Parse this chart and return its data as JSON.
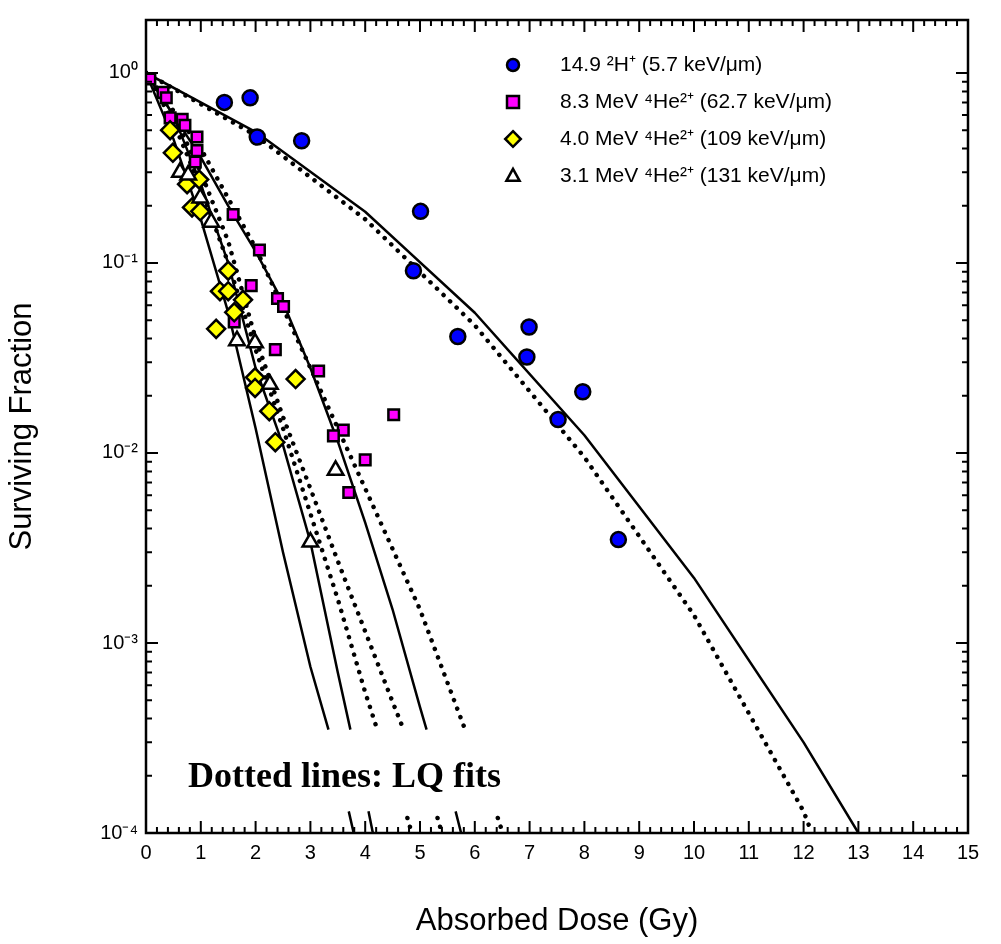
{
  "chart_data": {
    "type": "scatter",
    "xlabel": "Absorbed Dose (Gy)",
    "ylabel": "Surviving Fraction",
    "log": "y",
    "legend": "top right",
    "xlim": [
      0,
      15
    ],
    "ylim": [
      0.0001,
      1.9
    ],
    "xticks": [
      0,
      {
        "value": 0.2,
        "label": null
      },
      {
        "value": 0.4,
        "label": null
      },
      {
        "value": 0.6,
        "label": null
      },
      {
        "value": 0.8,
        "label": null
      },
      1,
      {
        "value": 1.2,
        "label": null
      },
      {
        "value": 1.4,
        "label": null
      },
      {
        "value": 1.6,
        "label": null
      },
      {
        "value": 1.8,
        "label": null
      },
      2,
      {
        "value": 2.2,
        "label": null
      },
      {
        "value": 2.4,
        "label": null
      },
      {
        "value": 2.6,
        "label": null
      },
      {
        "value": 2.8,
        "label": null
      },
      3,
      {
        "value": 3.2,
        "label": null
      },
      {
        "value": 3.4,
        "label": null
      },
      {
        "value": 3.6,
        "label": null
      },
      {
        "value": 3.8,
        "label": null
      },
      4,
      {
        "value": 4.2,
        "label": null
      },
      {
        "value": 4.4,
        "label": null
      },
      {
        "value": 4.6,
        "label": null
      },
      {
        "value": 4.8,
        "label": null
      },
      5,
      {
        "value": 5.2,
        "label": null
      },
      {
        "value": 5.4,
        "label": null
      },
      {
        "value": 5.6,
        "label": null
      },
      {
        "value": 5.8,
        "label": null
      },
      6,
      {
        "value": 6.2,
        "label": null
      },
      {
        "value": 6.4,
        "label": null
      },
      {
        "value": 6.6,
        "label": null
      },
      {
        "value": 6.8,
        "label": null
      },
      7,
      {
        "value": 7.2,
        "label": null
      },
      {
        "value": 7.4,
        "label": null
      },
      {
        "value": 7.6,
        "label": null
      },
      {
        "value": 7.8,
        "label": null
      },
      8,
      {
        "value": 8.2,
        "label": null
      },
      {
        "value": 8.4,
        "label": null
      },
      {
        "value": 8.6,
        "label": null
      },
      {
        "value": 8.8,
        "label": null
      },
      9,
      {
        "value": 9.2,
        "label": null
      },
      {
        "value": 9.4,
        "label": null
      },
      {
        "value": 9.6,
        "label": null
      },
      {
        "value": 9.8,
        "label": null
      },
      10,
      {
        "value": 10.2,
        "label": null
      },
      {
        "value": 10.4,
        "label": null
      },
      {
        "value": 10.6,
        "label": null
      },
      {
        "value": 10.8,
        "label": null
      },
      11,
      {
        "value": 11.2,
        "label": null
      },
      {
        "value": 11.4,
        "label": null
      },
      {
        "value": 11.6,
        "label": null
      },
      {
        "value": 11.8,
        "label": null
      },
      12,
      {
        "value": 12.2,
        "label": null
      },
      {
        "value": 12.4,
        "label": null
      },
      {
        "value": 12.6,
        "label": null
      },
      {
        "value": 12.8,
        "label": null
      },
      13,
      {
        "value": 13.2,
        "label": null
      },
      {
        "value": 13.4,
        "label": null
      },
      {
        "value": 13.6,
        "label": null
      },
      {
        "value": 13.8,
        "label": null
      },
      14,
      {
        "value": 14.2,
        "label": null
      },
      {
        "value": 14.4,
        "label": null
      },
      {
        "value": 14.6,
        "label": null
      },
      {
        "value": 14.8,
        "label": null
      },
      15
    ],
    "yticks": [
      {
        "value": 0.0001,
        "label": "10⁻⁴"
      },
      {
        "value": 0.0002,
        "label": null
      },
      {
        "value": 0.0003,
        "label": null
      },
      {
        "value": 0.0004,
        "label": null
      },
      {
        "value": 0.0005,
        "label": null
      },
      {
        "value": 0.0006,
        "label": null
      },
      {
        "value": 0.0007,
        "label": null
      },
      {
        "value": 0.0008,
        "label": null
      },
      {
        "value": 0.0009,
        "label": null
      },
      {
        "value": 0.001,
        "label": "10⁻³"
      },
      {
        "value": 0.002,
        "label": null
      },
      {
        "value": 0.003,
        "label": null
      },
      {
        "value": 0.004,
        "label": null
      },
      {
        "value": 0.005,
        "label": null
      },
      {
        "value": 0.006,
        "label": null
      },
      {
        "value": 0.007,
        "label": null
      },
      {
        "value": 0.008,
        "label": null
      },
      {
        "value": 0.009,
        "label": null
      },
      {
        "value": 0.01,
        "label": "10⁻²"
      },
      {
        "value": 0.02,
        "label": null
      },
      {
        "value": 0.03,
        "label": null
      },
      {
        "value": 0.04,
        "label": null
      },
      {
        "value": 0.05,
        "label": null
      },
      {
        "value": 0.06,
        "label": null
      },
      {
        "value": 0.07,
        "label": null
      },
      {
        "value": 0.08,
        "label": null
      },
      {
        "value": 0.09,
        "label": null
      },
      {
        "value": 0.1,
        "label": "10⁻¹"
      },
      {
        "value": 0.2,
        "label": null
      },
      {
        "value": 0.3,
        "label": null
      },
      {
        "value": 0.4,
        "label": null
      },
      {
        "value": 0.5,
        "label": null
      },
      {
        "value": 0.6,
        "label": null
      },
      {
        "value": 0.7,
        "label": null
      },
      {
        "value": 0.8,
        "label": null
      },
      {
        "value": 0.9,
        "label": null
      },
      {
        "value": 1,
        "label": "10⁰"
      }
    ],
    "annotations": [
      "Dotted lines: LQ fits"
    ],
    "series": [
      {
        "type": "line",
        "marker": "none",
        "line_style": "solid",
        "color": "#000000",
        "x": [
          0,
          2,
          4,
          6,
          8,
          10,
          12,
          13
        ],
        "values": [
          1,
          0.49,
          0.186,
          0.0547,
          0.0124,
          0.0022,
          0.0003,
          0.0001
        ]
      },
      {
        "type": "line",
        "marker": "none",
        "line_style": "dotted",
        "color": "#000000",
        "x": [
          0,
          2,
          4,
          6,
          8,
          10,
          12,
          12.15
        ],
        "values": [
          1,
          0.47,
          0.17,
          0.047,
          0.0095,
          0.0014,
          0.00013,
          0.0001
        ]
      },
      {
        "type": "line",
        "marker": "none",
        "line_style": "solid",
        "color": "#000000",
        "x": [
          0,
          0.5,
          1,
          1.5,
          2,
          2.5,
          3,
          3.5,
          4,
          4.5,
          5,
          5.12,
          5.4,
          5.65,
          5.75
        ],
        "values": [
          1,
          0.6,
          0.36,
          0.2,
          0.115,
          0.062,
          0.028,
          0.0115,
          0.0043,
          0.0015,
          0.00046,
          0.00035,
          null,
          0.00013,
          0.0001
        ]
      },
      {
        "type": "line",
        "marker": "none",
        "line_style": "dotted",
        "color": "#000000",
        "x": [
          0,
          1,
          2,
          3,
          4,
          5,
          5.84,
          6.1,
          6.42,
          6.51
        ],
        "values": [
          1,
          0.4,
          0.12,
          0.028,
          0.0065,
          0.0015,
          0.00034,
          null,
          0.00012,
          0.0001
        ]
      },
      {
        "type": "line",
        "marker": "none",
        "line_style": "solid",
        "color": "#000000",
        "x": [
          0,
          0.5,
          1,
          1.5,
          2,
          2.5,
          3,
          3.33,
          3.5,
          3.7,
          3.79
        ],
        "values": [
          1,
          0.45,
          0.17,
          0.055,
          0.0135,
          0.003,
          0.00075,
          0.00035,
          null,
          0.00013,
          0.0001
        ]
      },
      {
        "type": "line",
        "marker": "none",
        "line_style": "solid",
        "color": "#000000",
        "x": [
          0,
          0.5,
          1,
          1.5,
          2,
          2.5,
          3,
          3.5,
          3.73,
          3.9,
          4.06,
          4.14
        ],
        "values": [
          1,
          0.6,
          0.26,
          0.1,
          0.028,
          0.011,
          0.0034,
          0.0007,
          0.00035,
          null,
          0.00013,
          0.0001
        ]
      },
      {
        "type": "line",
        "marker": "none",
        "line_style": "dotted",
        "color": "#000000",
        "x": [
          0,
          0.5,
          1,
          1.5,
          2,
          2.5,
          3,
          3.5,
          4,
          4.22,
          4.5,
          4.77,
          4.85
        ],
        "values": [
          1,
          0.55,
          0.25,
          0.1,
          0.035,
          0.0135,
          0.0048,
          0.0017,
          0.00055,
          0.00035,
          null,
          0.00012,
          0.0001
        ]
      },
      {
        "type": "line",
        "marker": "none",
        "line_style": "dotted",
        "color": "#000000",
        "x": [
          0,
          0.5,
          1,
          1.5,
          2,
          2.5,
          3,
          3.5,
          4,
          4.5,
          4.7,
          5,
          5.32,
          5.4
        ],
        "values": [
          1,
          0.6,
          0.3,
          0.13,
          0.04,
          0.0155,
          0.0065,
          0.0027,
          0.00115,
          0.00049,
          0.00035,
          null,
          0.00012,
          0.0001
        ]
      },
      {
        "name": "14.9 ²H⁺ (5.7 keV/μm)",
        "marker": "circle",
        "color": "#0000ff",
        "x": [
          1.43,
          1.9,
          2.03,
          2.84,
          5.01,
          4.88,
          6.99,
          5.69,
          6.95,
          7.97,
          7.52,
          8.62
        ],
        "values": [
          0.7,
          0.74,
          0.46,
          0.44,
          0.187,
          0.091,
          0.046,
          0.041,
          0.032,
          0.021,
          0.015,
          0.0035
        ]
      },
      {
        "name": "8.3 MeV ⁴He²⁺ (62.7 keV/μm)",
        "marker": "square",
        "color": "#ff00ff",
        "x": [
          0.07,
          0.31,
          0.37,
          0.44,
          0.66,
          0.71,
          0.93,
          0.93,
          0.9,
          1.59,
          2.07,
          1.92,
          2.4,
          2.51,
          1.61,
          2.36,
          3.15,
          4.52,
          3.6,
          3.42,
          4.0,
          3.7
        ],
        "values": [
          0.93,
          0.79,
          0.74,
          0.58,
          0.57,
          0.53,
          0.46,
          0.39,
          0.34,
          0.18,
          0.117,
          0.076,
          0.065,
          0.059,
          0.049,
          0.035,
          0.027,
          0.0159,
          0.0132,
          0.0123,
          0.0092,
          0.0062
        ]
      },
      {
        "name": "4.0 MeV ⁴He²⁺ (109 keV/μm)",
        "marker": "diamond",
        "color": "#ffff00",
        "x": [
          0.44,
          0.49,
          0.75,
          0.97,
          0.84,
          0.99,
          1.5,
          1.35,
          1.5,
          1.77,
          1.61,
          1.28,
          2.73,
          1.99,
          1.99,
          2.25,
          2.36
        ],
        "values": [
          0.5,
          0.38,
          0.26,
          0.275,
          0.196,
          0.187,
          0.091,
          0.071,
          0.071,
          0.064,
          0.055,
          0.045,
          0.0245,
          0.025,
          0.022,
          0.0166,
          0.0114
        ]
      },
      {
        "name": "3.1 MeV ⁴He²⁺ (131 keV/μm)",
        "marker": "triangle",
        "color": "#ffffff",
        "x": [
          0.62,
          0.77,
          0.99,
          1.19,
          1.66,
          1.99,
          2.26,
          3.46,
          3.0
        ],
        "values": [
          0.3,
          0.29,
          0.22,
          0.164,
          0.039,
          0.038,
          0.023,
          0.0081,
          0.0034
        ]
      }
    ]
  }
}
